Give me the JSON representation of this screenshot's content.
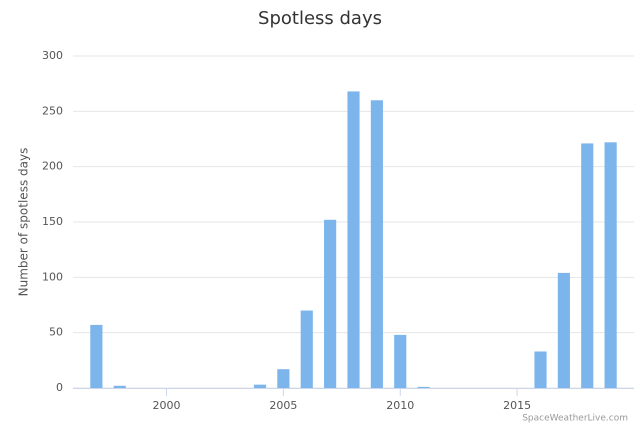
{
  "chart_data": {
    "type": "bar",
    "title": "Spotless days",
    "y_label": "Number of spotless days",
    "credit": "SpaceWeatherLive.com",
    "x": [
      1997,
      1998,
      1999,
      2000,
      2001,
      2002,
      2003,
      2004,
      2005,
      2006,
      2007,
      2008,
      2009,
      2010,
      2011,
      2012,
      2013,
      2014,
      2015,
      2016,
      2017,
      2018,
      2019
    ],
    "values": [
      57,
      2,
      0,
      0,
      0,
      0,
      0,
      3,
      17,
      70,
      152,
      268,
      260,
      48,
      1,
      0,
      0,
      0,
      0,
      33,
      104,
      221,
      222
    ],
    "color": "#7cb5ec",
    "xlim": [
      1996,
      2020
    ],
    "xticks": [
      2000,
      2005,
      2010,
      2015
    ],
    "ylim": [
      0,
      300
    ],
    "yticks": [
      0,
      50,
      100,
      150,
      200,
      250,
      300
    ],
    "grid": true
  }
}
